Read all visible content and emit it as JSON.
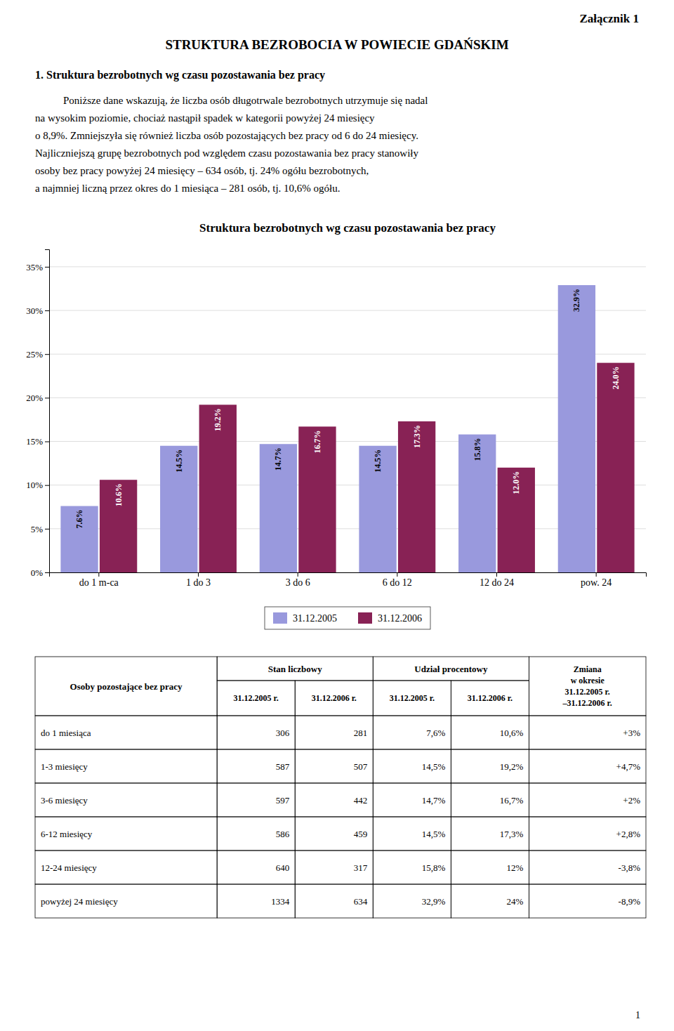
{
  "page_title": "Załącznik 1",
  "main_title": "STRUKTURA BEZROBOCIA W POWIECIE GDAŃSKIM",
  "section_title": "1. Struktura bezrobotnych wg czasu pozostawania bez pracy",
  "paragraph": [
    "Poniższe dane wskazują, że liczba osób długotrwale bezrobotnych utrzymuje się nadal",
    "na wysokim poziomie, chociaż nastąpił spadek w kategorii powyżej 24 miesięcy",
    "o 8,9%. Zmniejszyła się również liczba osób pozostających bez pracy od 6 do 24 miesięcy.",
    "Najliczniejszą grupę bezrobotnych pod względem czasu pozostawania bez pracy stanowiły",
    "osoby bez pracy powyżej 24 miesięcy – 634 osób, tj. 24% ogółu bezrobotnych,",
    "a najmniej liczną przez okres do 1 miesiąca – 281 osób, tj. 10,6% ogółu."
  ],
  "chart_data": {
    "type": "bar",
    "title": "Struktura bezrobotnych wg czasu pozostawania bez pracy",
    "categories": [
      "do 1 m-ca",
      "1 do 3",
      "3 do 6",
      "6 do 12",
      "12 do 24",
      "pow. 24"
    ],
    "series": [
      {
        "name": "31.12.2005",
        "color": "#9999dd",
        "values": [
          7.6,
          14.5,
          14.7,
          14.5,
          15.8,
          32.9
        ],
        "value_labels": [
          "7.6%",
          "14.5%",
          "14.7%",
          "14.5%",
          "15.8%",
          "32.9%"
        ]
      },
      {
        "name": "31.12.2006",
        "color": "#882255",
        "values": [
          10.6,
          19.2,
          16.7,
          17.3,
          12.0,
          24.0
        ],
        "value_labels": [
          "10.6%",
          "19.2%",
          "16.7%",
          "17.3%",
          "12.0%",
          "24.0%"
        ]
      }
    ],
    "ylim": [
      0,
      37
    ],
    "yticks": [
      {
        "value": 0,
        "label": "0%"
      },
      {
        "value": 5,
        "label": "5%"
      },
      {
        "value": 10,
        "label": "10%"
      },
      {
        "value": 15,
        "label": "15%"
      },
      {
        "value": 20,
        "label": "20%"
      },
      {
        "value": 25,
        "label": "25%"
      },
      {
        "value": 30,
        "label": "30%"
      },
      {
        "value": 35,
        "label": "35%"
      }
    ],
    "grid": true,
    "legend": "bottom",
    "data_labels": true
  },
  "table": {
    "row_header": "Osoby pozostające bez pracy",
    "groups": [
      "Stan liczbowy",
      "Udział procentowy"
    ],
    "change_header": [
      "Zmiana",
      "w okresie",
      "31.12.2005 r.",
      "–31.12.2006 r."
    ],
    "sub_headers": [
      "31.12.2005 r.",
      "31.12.2006 r.",
      "31.12.2005 r.",
      "31.12.2006 r."
    ],
    "rows": [
      [
        "do 1 miesiąca",
        "306",
        "281",
        "7,6%",
        "10,6%",
        "+3%"
      ],
      [
        "1-3 miesięcy",
        "587",
        "507",
        "14,5%",
        "19,2%",
        "+4,7%"
      ],
      [
        "3-6 miesięcy",
        "597",
        "442",
        "14,7%",
        "16,7%",
        "+2%"
      ],
      [
        "6-12 miesięcy",
        "586",
        "459",
        "14,5%",
        "17,3%",
        "+2,8%"
      ],
      [
        "12-24 miesięcy",
        "640",
        "317",
        "15,8%",
        "12%",
        "-3,8%"
      ],
      [
        "powyżej 24 miesięcy",
        "1334",
        "634",
        "32,9%",
        "24%",
        "-8,9%"
      ]
    ]
  },
  "footer": "1"
}
